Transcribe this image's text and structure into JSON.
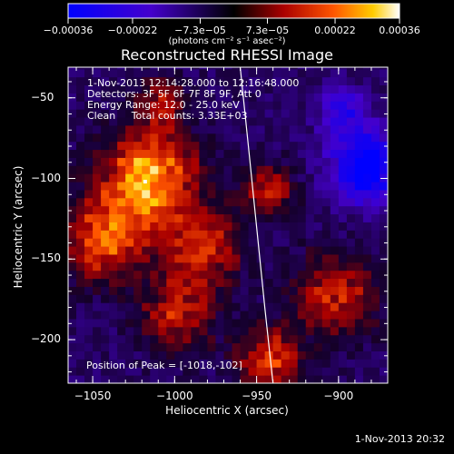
{
  "chart_data": {
    "type": "heatmap",
    "title": "Reconstructed RHESSI Image",
    "xlabel": "Heliocentric X (arcsec)",
    "ylabel": "Heliocentric Y (arcsec)",
    "xlim": [
      -1065,
      -870
    ],
    "ylim": [
      -227,
      -31
    ],
    "x_ticks": [
      -1050,
      -1000,
      -950,
      -900
    ],
    "y_ticks": [
      -50,
      -100,
      -150,
      -200
    ],
    "x_tick_labels": [
      "−1050",
      "−1000",
      "−950",
      "−900"
    ],
    "y_tick_labels": [
      "−50",
      "−100",
      "−150",
      "−200"
    ],
    "colorbar": {
      "ticks": [
        -0.00036,
        -0.00022,
        -7.3e-05,
        7.3e-05,
        0.00022,
        0.00036
      ],
      "tick_labels": [
        "−0.00036",
        "−0.00022",
        "−7.3e−05",
        "7.3e−05",
        "0.00022",
        "0.00036"
      ],
      "units": "(photons cm⁻² s⁻¹ asec⁻²)",
      "range": [
        -0.00036,
        0.00036
      ]
    },
    "annotations": [
      "1-Nov-2013 12:14:28.000 to 12:16:48.000",
      "Detectors: 3F 5F 6F 7F 8F 9F, Att 0",
      "Energy Range: 12.0 - 25.0 keV",
      "Clean     Total counts: 3.33E+03"
    ],
    "peak": {
      "label": "Position of Peak = [-1018,-102]",
      "x": -1018,
      "y": -102
    },
    "limb_curve": [
      [
        -960,
        -31
      ],
      [
        -955,
        -80
      ],
      [
        -950,
        -130
      ],
      [
        -945,
        -180
      ],
      [
        -940,
        -227
      ]
    ],
    "hot_regions": [
      {
        "x": -1018,
        "y": -102,
        "radius": 28,
        "value": 0.00036
      },
      {
        "x": -1045,
        "y": -140,
        "radius": 25,
        "value": 0.00026
      },
      {
        "x": -985,
        "y": -145,
        "radius": 22,
        "value": 0.00022
      },
      {
        "x": -1000,
        "y": -185,
        "radius": 22,
        "value": 0.0002
      },
      {
        "x": -945,
        "y": -110,
        "radius": 15,
        "value": 0.00022
      },
      {
        "x": -945,
        "y": -215,
        "radius": 18,
        "value": 0.00026
      },
      {
        "x": -905,
        "y": -175,
        "radius": 25,
        "value": 0.0002
      },
      {
        "x": -1010,
        "y": -55,
        "radius": 15,
        "value": 0.00016
      }
    ],
    "cold_regions": [
      {
        "x": -885,
        "y": -95,
        "radius": 22,
        "value": -0.00036
      },
      {
        "x": -900,
        "y": -60,
        "radius": 15,
        "value": -0.00018
      }
    ],
    "grid": false
  },
  "timestamp": "1-Nov-2013 20:32"
}
